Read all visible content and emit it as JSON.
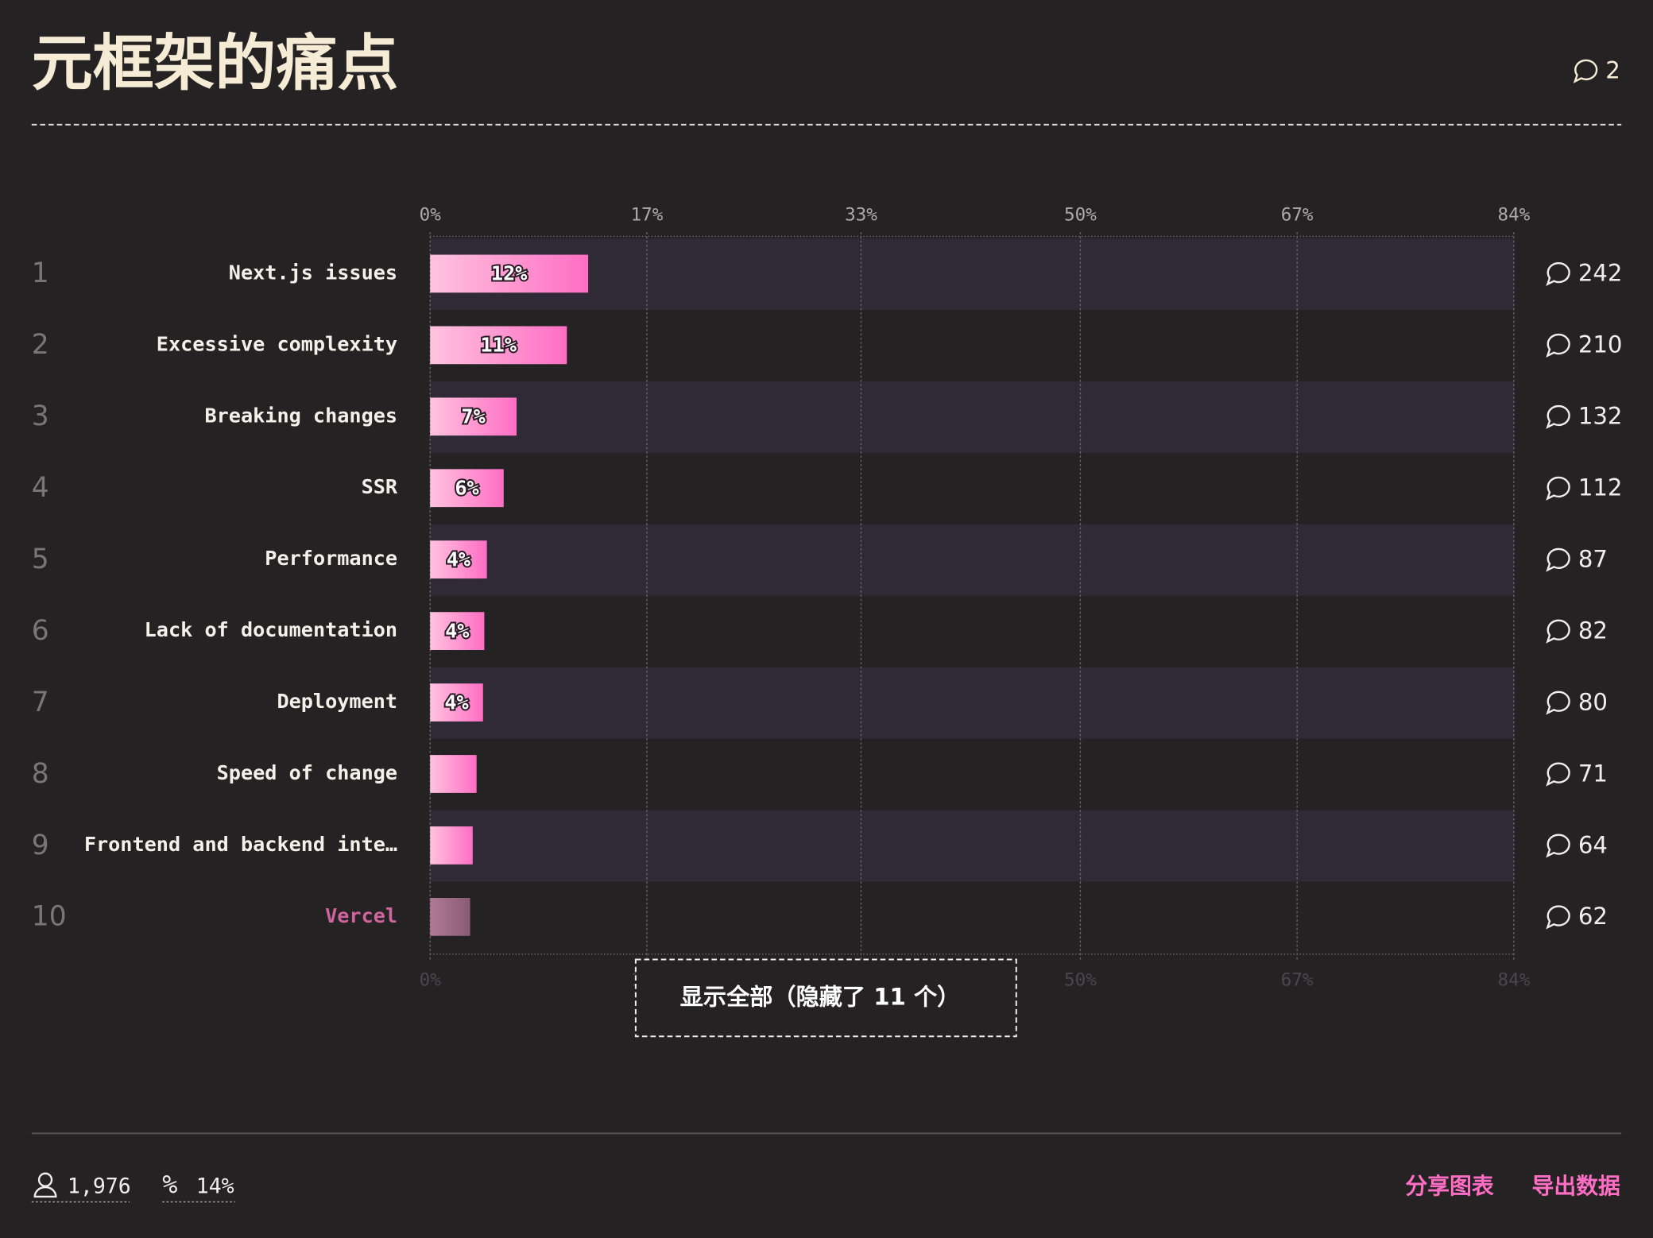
{
  "header": {
    "title": "元框架的痛点",
    "comments": "2"
  },
  "chart_data": {
    "type": "bar",
    "orientation": "horizontal",
    "ranks": [
      1,
      2,
      3,
      4,
      5,
      6,
      7,
      8,
      9,
      10
    ],
    "categories": [
      "Next.js issues",
      "Excessive complexity",
      "Breaking changes",
      "SSR",
      "Performance",
      "Lack of documentation",
      "Deployment",
      "Speed of change",
      "Frontend and backend inte…",
      "Vercel"
    ],
    "values": [
      12.25,
      10.6,
      6.7,
      5.7,
      4.4,
      4.2,
      4.1,
      3.6,
      3.3,
      3.1
    ],
    "value_labels": [
      "12%",
      "11%",
      "7%",
      "6%",
      "4%",
      "4%",
      "4%",
      null,
      null,
      null
    ],
    "comments": [
      242,
      210,
      132,
      112,
      87,
      82,
      80,
      71,
      64,
      62
    ],
    "color": [
      "#ffc3df",
      "#ff6ec4"
    ],
    "highlight": "Vercel",
    "highlight_color": "#d0649e",
    "highlight_bar_color": [
      "#b07a96",
      "#8a5a74"
    ],
    "xlim": [
      0,
      84
    ],
    "xticks": [
      {
        "value": 0,
        "label": "0%"
      },
      {
        "value": 16.8,
        "label": "17%"
      },
      {
        "value": 33.4,
        "label": "33%"
      },
      {
        "value": 50.4,
        "label": "50%"
      },
      {
        "value": 67.2,
        "label": "67%"
      },
      {
        "value": 84,
        "label": "84%"
      }
    ],
    "grid": true
  },
  "button": "显示全部（隐藏了 11 个）",
  "footer": {
    "respondents": "1,976",
    "percent": "14%",
    "share": "分享图表",
    "export": "导出数据"
  }
}
